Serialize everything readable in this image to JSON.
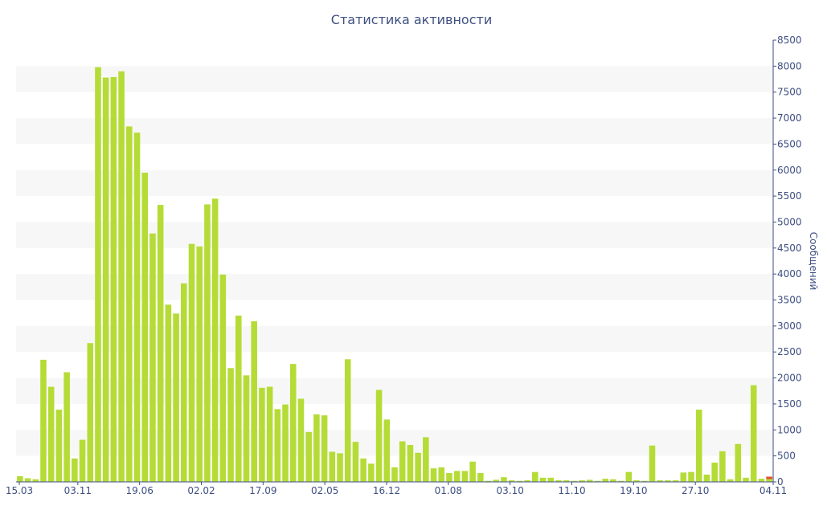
{
  "chart_data": {
    "type": "bar",
    "title": "Статистика активности",
    "ylabel": "Сообщений",
    "xlabel": "",
    "ylim": [
      0,
      8500
    ],
    "y_ticks": [
      0,
      500,
      1000,
      1500,
      2000,
      2500,
      3000,
      3500,
      4000,
      4500,
      5000,
      5500,
      6000,
      6500,
      7000,
      7500,
      8000,
      8500
    ],
    "x_tick_labels": [
      "15.03",
      "03.11",
      "19.06",
      "02.02",
      "17.09",
      "02.05",
      "16.12",
      "01.08",
      "03.10",
      "11.10",
      "19.10",
      "27.10",
      "04.11"
    ],
    "grid": "alternating horizontal bands",
    "colors": {
      "bar": "#b5dc36",
      "band": "#f7f7f7",
      "text": "#3e4f82",
      "last_bar_top": "#e05030"
    },
    "values": [
      110,
      70,
      50,
      2350,
      1830,
      1390,
      2110,
      450,
      810,
      2670,
      7980,
      7780,
      7790,
      7900,
      6840,
      6720,
      5950,
      4780,
      5330,
      3410,
      3240,
      3820,
      4580,
      4530,
      5340,
      5450,
      3990,
      2190,
      3200,
      2050,
      3090,
      1810,
      1830,
      1400,
      1490,
      2270,
      1600,
      960,
      1300,
      1280,
      580,
      550,
      2360,
      770,
      450,
      350,
      1770,
      1200,
      280,
      780,
      710,
      560,
      860,
      260,
      280,
      170,
      210,
      210,
      390,
      170,
      20,
      40,
      90,
      30,
      20,
      30,
      190,
      80,
      80,
      30,
      30,
      20,
      30,
      40,
      20,
      60,
      50,
      20,
      190,
      30,
      20,
      700,
      30,
      30,
      30,
      180,
      190,
      1390,
      140,
      370,
      590,
      50,
      730,
      80,
      1860,
      60,
      100
    ]
  }
}
